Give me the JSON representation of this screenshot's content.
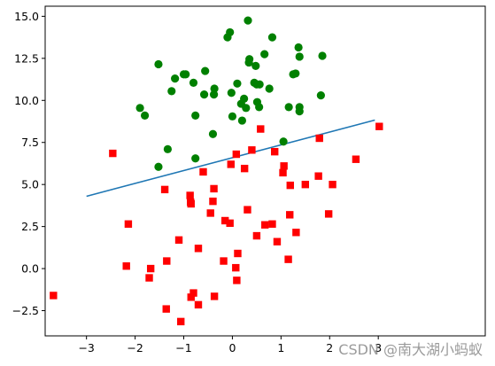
{
  "watermark": "CSDN @南大湖小蚂蚁",
  "chart_data": {
    "type": "scatter",
    "title": "",
    "xlabel": "",
    "ylabel": "",
    "xlim": [
      -3.85,
      5.2
    ],
    "ylim": [
      -4.0,
      15.6
    ],
    "grid": false,
    "x_ticks": [
      -3,
      -2,
      -1,
      0,
      1,
      2,
      3
    ],
    "x_tick_labels": [
      "−3",
      "−2",
      "−1",
      "0",
      "1",
      "2",
      "3"
    ],
    "y_ticks": [
      -2.5,
      0.0,
      2.5,
      5.0,
      7.5,
      10.0,
      12.5,
      15.0
    ],
    "y_tick_labels": [
      "−2.5",
      "0.0",
      "2.5",
      "5.0",
      "7.5",
      "10.0",
      "12.5",
      "15.0"
    ],
    "colors": {
      "green": "#008000",
      "red": "#ff0000",
      "line": "#1f77b4",
      "axes": "#000000"
    },
    "series": [
      {
        "marker": "circle",
        "color": "#008000",
        "points": [
          [
            0.32,
            14.75
          ],
          [
            -0.05,
            14.05
          ],
          [
            -0.1,
            13.75
          ],
          [
            1.36,
            13.15
          ],
          [
            0.82,
            13.75
          ],
          [
            1.38,
            12.6
          ],
          [
            1.85,
            12.65
          ],
          [
            0.35,
            12.45
          ],
          [
            0.34,
            12.25
          ],
          [
            0.48,
            12.05
          ],
          [
            0.66,
            12.75
          ],
          [
            -1.52,
            12.15
          ],
          [
            1.25,
            11.55
          ],
          [
            1.3,
            11.6
          ],
          [
            -0.56,
            11.75
          ],
          [
            -0.96,
            11.55
          ],
          [
            -1.0,
            11.55
          ],
          [
            -1.18,
            11.3
          ],
          [
            -0.8,
            11.05
          ],
          [
            0.45,
            11.05
          ],
          [
            0.5,
            10.95
          ],
          [
            0.56,
            10.95
          ],
          [
            0.1,
            11.0
          ],
          [
            -0.37,
            10.7
          ],
          [
            0.76,
            10.7
          ],
          [
            -1.25,
            10.55
          ],
          [
            -0.38,
            10.35
          ],
          [
            -0.58,
            10.35
          ],
          [
            -0.02,
            10.45
          ],
          [
            0.24,
            10.1
          ],
          [
            1.82,
            10.3
          ],
          [
            0.51,
            9.9
          ],
          [
            0.55,
            9.6
          ],
          [
            1.38,
            9.6
          ],
          [
            0.18,
            9.8
          ],
          [
            0.28,
            9.55
          ],
          [
            1.38,
            9.35
          ],
          [
            1.16,
            9.6
          ],
          [
            -1.9,
            9.55
          ],
          [
            -1.8,
            9.1
          ],
          [
            -0.76,
            9.1
          ],
          [
            0.0,
            9.05
          ],
          [
            0.2,
            8.8
          ],
          [
            -0.4,
            8.0
          ],
          [
            -1.33,
            7.1
          ],
          [
            1.05,
            7.55
          ],
          [
            -0.76,
            6.55
          ],
          [
            -1.52,
            6.05
          ]
        ]
      },
      {
        "marker": "square",
        "color": "#ff0000",
        "points": [
          [
            -3.68,
            -1.6
          ],
          [
            -2.46,
            6.85
          ],
          [
            -2.14,
            2.65
          ],
          [
            -2.18,
            0.15
          ],
          [
            -1.68,
            0.0
          ],
          [
            -1.71,
            -0.55
          ],
          [
            -1.39,
            4.7
          ],
          [
            -1.35,
            0.45
          ],
          [
            -1.36,
            -2.4
          ],
          [
            -1.1,
            1.7
          ],
          [
            -1.06,
            -3.15
          ],
          [
            -0.87,
            4.35
          ],
          [
            -0.86,
            3.95
          ],
          [
            -0.85,
            3.85
          ],
          [
            -0.8,
            -1.45
          ],
          [
            -0.85,
            -1.7
          ],
          [
            -0.7,
            1.2
          ],
          [
            -0.7,
            -2.15
          ],
          [
            -0.6,
            5.75
          ],
          [
            -0.45,
            3.3
          ],
          [
            -0.4,
            4.0
          ],
          [
            -0.38,
            4.75
          ],
          [
            -0.37,
            -1.65
          ],
          [
            -0.18,
            0.45
          ],
          [
            -0.15,
            2.85
          ],
          [
            -0.05,
            2.7
          ],
          [
            -0.03,
            6.2
          ],
          [
            0.08,
            6.8
          ],
          [
            0.07,
            0.05
          ],
          [
            0.09,
            -0.7
          ],
          [
            0.11,
            0.9
          ],
          [
            0.25,
            5.95
          ],
          [
            0.31,
            3.5
          ],
          [
            0.4,
            7.05
          ],
          [
            0.5,
            1.95
          ],
          [
            0.58,
            8.3
          ],
          [
            0.67,
            2.6
          ],
          [
            0.82,
            2.65
          ],
          [
            0.87,
            6.95
          ],
          [
            0.92,
            1.6
          ],
          [
            1.04,
            5.7
          ],
          [
            1.06,
            6.1
          ],
          [
            1.15,
            0.55
          ],
          [
            1.19,
            4.95
          ],
          [
            1.18,
            3.2
          ],
          [
            1.31,
            2.15
          ],
          [
            1.5,
            5.0
          ],
          [
            1.79,
            7.75
          ],
          [
            1.77,
            5.5
          ],
          [
            1.98,
            3.25
          ],
          [
            2.06,
            5.0
          ],
          [
            2.54,
            6.5
          ],
          [
            3.02,
            8.45
          ]
        ]
      }
    ],
    "line": {
      "x": [
        -3.0,
        2.93
      ],
      "y": [
        4.3,
        8.83
      ]
    }
  }
}
